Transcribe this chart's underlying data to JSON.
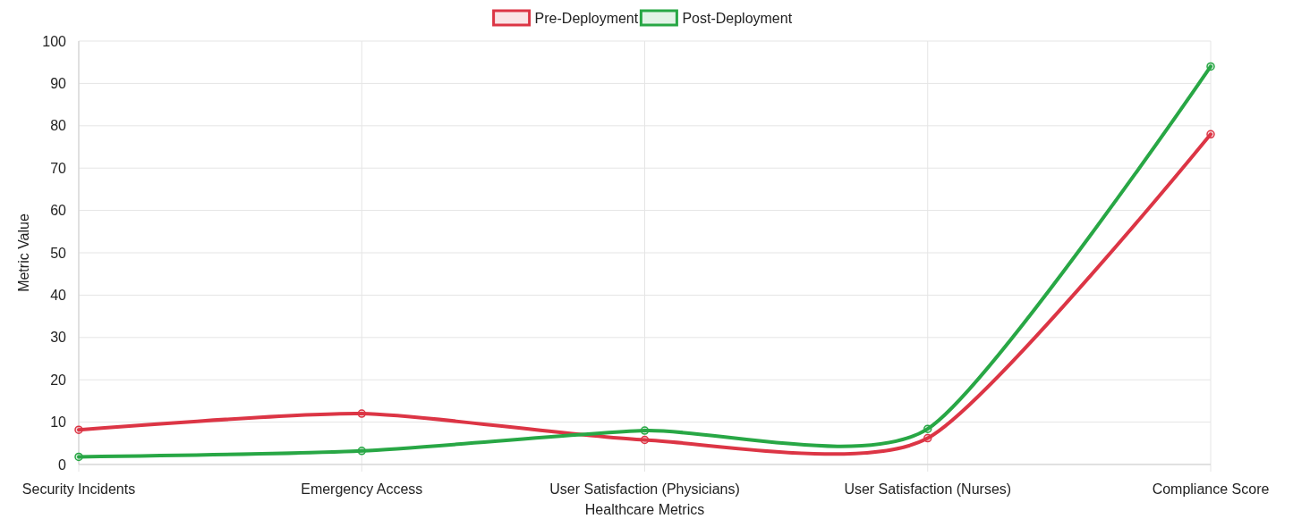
{
  "chart_data": {
    "type": "line",
    "xlabel": "Healthcare Metrics",
    "ylabel": "Metric Value",
    "categories": [
      "Security Incidents",
      "Emergency Access",
      "User Satisfaction (Physicians)",
      "User Satisfaction (Nurses)",
      "Compliance Score"
    ],
    "series": [
      {
        "name": "Pre-Deployment",
        "color": "#dc3545",
        "values": [
          8.2,
          12,
          5.8,
          6.2,
          78
        ]
      },
      {
        "name": "Post-Deployment",
        "color": "#28a745",
        "values": [
          1.8,
          3.2,
          8,
          8.4,
          94
        ]
      }
    ],
    "ylim": [
      0,
      100
    ],
    "yticks": [
      0,
      10,
      20,
      30,
      40,
      50,
      60,
      70,
      80,
      90,
      100
    ],
    "grid": true,
    "legend": "top",
    "marker": "circle",
    "line_style": "solid"
  }
}
